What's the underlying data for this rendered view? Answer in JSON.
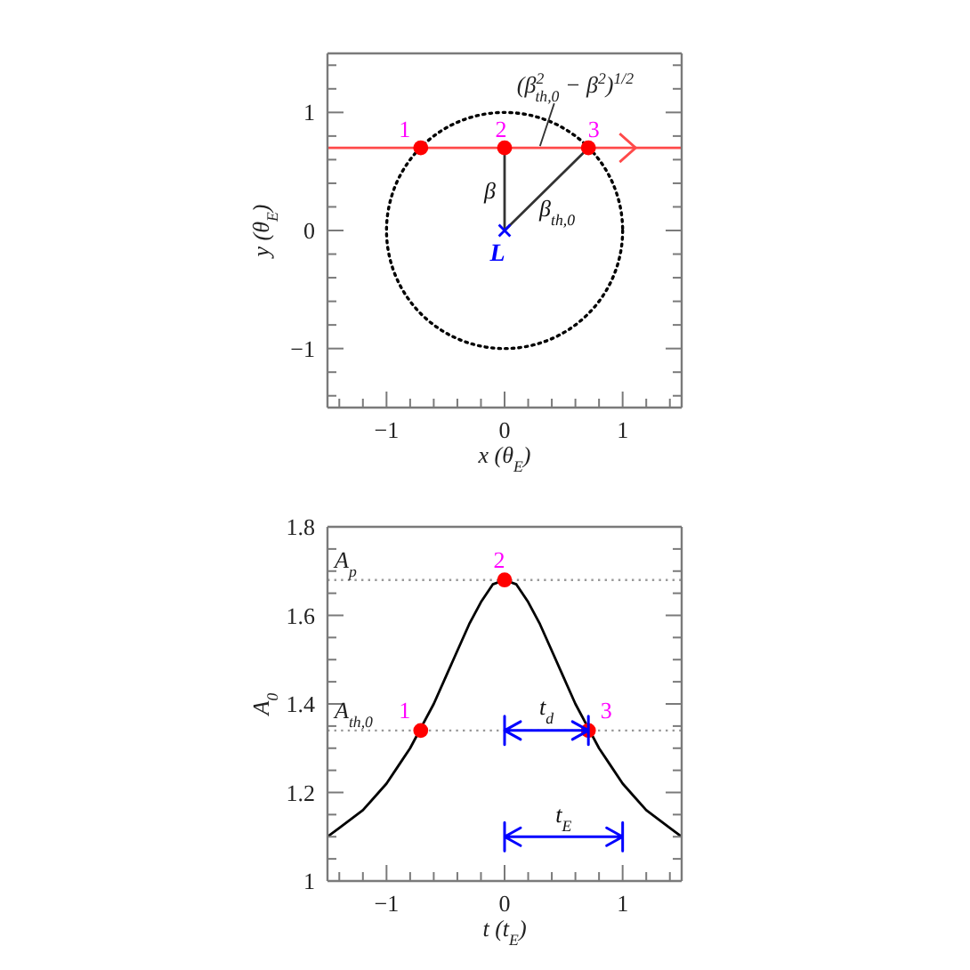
{
  "chart_data": [
    {
      "type": "line",
      "xlabel": "x (θ$_{E}$)",
      "ylabel": "y (θ$_{E}$)",
      "xlim": [
        -1.5,
        1.5
      ],
      "ylim": [
        -1.5,
        1.5
      ],
      "xticks": [
        {
          "value": -1.4,
          "label": null
        },
        {
          "value": -1.2,
          "label": null
        },
        {
          "value": -1,
          "label": "−1"
        },
        {
          "value": -0.8,
          "label": null
        },
        {
          "value": -0.6,
          "label": null
        },
        {
          "value": -0.4,
          "label": null
        },
        {
          "value": -0.2,
          "label": null
        },
        {
          "value": 0,
          "label": "0"
        },
        {
          "value": 0.2,
          "label": null
        },
        {
          "value": 0.4,
          "label": null
        },
        {
          "value": 0.6,
          "label": null
        },
        {
          "value": 0.8,
          "label": null
        },
        1,
        {
          "value": 1.2,
          "label": null
        },
        {
          "value": 1.4,
          "label": null
        }
      ],
      "yticks": [
        {
          "value": -1.4,
          "label": null
        },
        {
          "value": -1.2,
          "label": null
        },
        {
          "value": -1,
          "label": "−1"
        },
        {
          "value": -0.8,
          "label": null
        },
        {
          "value": -0.6,
          "label": null
        },
        {
          "value": -0.4,
          "label": null
        },
        {
          "value": -0.2,
          "label": null
        },
        {
          "value": 0,
          "label": "0"
        },
        {
          "value": 0.2,
          "label": null
        },
        {
          "value": 0.4,
          "label": null
        },
        {
          "value": 0.6,
          "label": null
        },
        {
          "value": 0.8,
          "label": null
        },
        1,
        {
          "value": 1.2,
          "label": null
        },
        {
          "value": 1.4,
          "label": null
        }
      ],
      "line_style": "solid",
      "series": [
        {
          "color": "#ff4a4a",
          "x": [
            -1.5,
            1.5
          ],
          "values": [
            0.7,
            0.7
          ]
        },
        {
          "color": "#333333",
          "name": "β",
          "x": [
            0,
            0
          ],
          "values": [
            0,
            0.7
          ]
        },
        {
          "color": "#333333",
          "name": "β$_{th,0}$",
          "x": [
            0,
            0.71
          ],
          "values": [
            0,
            0.7
          ]
        },
        {
          "type": "scatter",
          "color": "#ff0000",
          "marker": "circle",
          "x": [
            -0.71,
            0,
            0.71
          ],
          "values": [
            0.7,
            0.7,
            0.7
          ]
        },
        {
          "type": "scatter",
          "color": "#0000ff",
          "marker": "cross",
          "name": "L",
          "x": [
            0
          ],
          "values": [
            0
          ]
        }
      ],
      "annotations": [
        {
          "text": "1",
          "x": -0.71,
          "y": 0.7
        },
        {
          "text": "2",
          "x": 0,
          "y": 0.7
        },
        {
          "text": "3",
          "x": 0.71,
          "y": 0.7
        },
        {
          "text": "(β$^{2}$$_{th,0}$ − β$^{2}$)$^{1/2}$",
          "x": 0.3,
          "y": 0.7
        }
      ]
    },
    {
      "type": "line",
      "xlabel": "t (t$_{E}$)",
      "ylabel": "A$_{0}$",
      "xlim": [
        -1.5,
        1.5
      ],
      "ylim": [
        1,
        1.8
      ],
      "xticks": [
        {
          "value": -1.4,
          "label": null
        },
        {
          "value": -1.2,
          "label": null
        },
        {
          "value": -1,
          "label": "−1"
        },
        {
          "value": -0.8,
          "label": null
        },
        {
          "value": -0.6,
          "label": null
        },
        {
          "value": -0.4,
          "label": null
        },
        {
          "value": -0.2,
          "label": null
        },
        {
          "value": 0,
          "label": "0"
        },
        {
          "value": 0.2,
          "label": null
        },
        {
          "value": 0.4,
          "label": null
        },
        {
          "value": 0.6,
          "label": null
        },
        {
          "value": 0.8,
          "label": null
        },
        1,
        {
          "value": 1.2,
          "label": null
        },
        {
          "value": 1.4,
          "label": null
        }
      ],
      "yticks": [
        1,
        {
          "value": 1.05,
          "label": null
        },
        {
          "value": 1.1,
          "label": null
        },
        {
          "value": 1.15,
          "label": null
        },
        1.2,
        {
          "value": 1.25,
          "label": null
        },
        {
          "value": 1.3,
          "label": null
        },
        {
          "value": 1.35,
          "label": null
        },
        1.4,
        {
          "value": 1.45,
          "label": null
        },
        {
          "value": 1.5,
          "label": null
        },
        {
          "value": 1.55,
          "label": null
        },
        1.6,
        {
          "value": 1.65,
          "label": null
        },
        {
          "value": 1.7,
          "label": null
        },
        {
          "value": 1.75,
          "label": null
        },
        1.8
      ],
      "line_style": "solid",
      "ref_lines": [
        {
          "axis": "y",
          "value": 1.68,
          "label": "A$_{p}$",
          "color": "#999999",
          "line_style": "dotted"
        },
        {
          "axis": "y",
          "value": 1.34,
          "label": "A$_{th,0}$",
          "color": "#999999",
          "line_style": "dotted"
        }
      ],
      "series": [
        {
          "color": "#000000",
          "x": [
            -1.5,
            -1.4,
            -1.3,
            -1.2,
            -1.1,
            -1,
            -0.9,
            -0.8,
            -0.7,
            -0.6,
            -0.5,
            -0.4,
            -0.3,
            -0.2,
            -0.1,
            0,
            0.1,
            0.2,
            0.3,
            0.4,
            0.5,
            0.6,
            0.7,
            0.8,
            0.9,
            1,
            1.1,
            1.2,
            1.3,
            1.4,
            1.5
          ],
          "values": [
            1.1,
            1.12,
            1.14,
            1.16,
            1.19,
            1.22,
            1.26,
            1.3,
            1.35,
            1.4,
            1.46,
            1.52,
            1.58,
            1.63,
            1.67,
            1.68,
            1.67,
            1.63,
            1.58,
            1.52,
            1.46,
            1.4,
            1.35,
            1.3,
            1.26,
            1.22,
            1.19,
            1.16,
            1.14,
            1.12,
            1.1
          ]
        },
        {
          "type": "scatter",
          "color": "#ff0000",
          "marker": "circle",
          "x": [
            -0.71,
            0,
            0.71
          ],
          "values": [
            1.34,
            1.68,
            1.34
          ]
        }
      ],
      "annotations": [
        {
          "text": "1",
          "x": -0.71,
          "y": 1.34
        },
        {
          "text": "2",
          "x": 0,
          "y": 1.68
        },
        {
          "text": "3",
          "x": 0.71,
          "y": 1.34
        },
        {
          "text": "t$_{d}$",
          "x": 0.71,
          "y": 1.34
        },
        "t$_{E}$"
      ]
    }
  ]
}
